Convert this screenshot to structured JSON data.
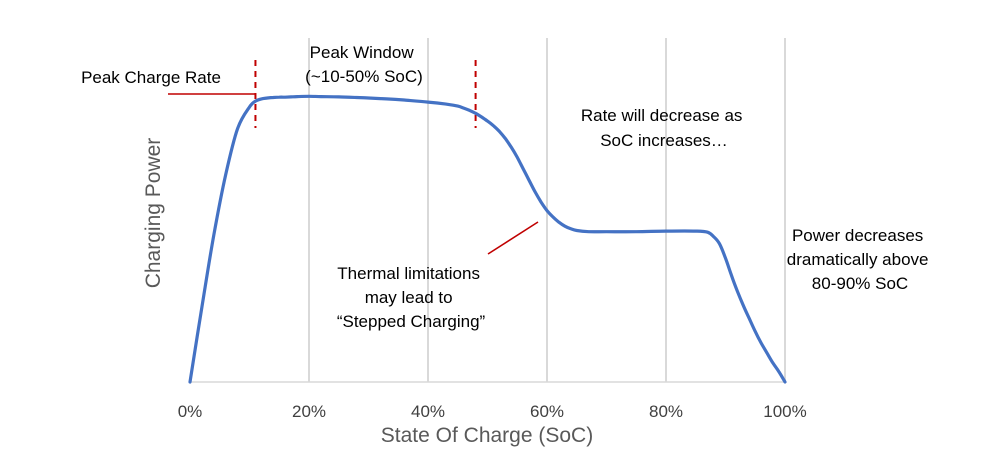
{
  "chart_data": {
    "type": "line",
    "title": "",
    "xlabel": "State Of Charge (SoC)",
    "ylabel": "Charging Power",
    "xlim": [
      0,
      100
    ],
    "x_ticks": [
      "0%",
      "20%",
      "40%",
      "60%",
      "80%",
      "100%"
    ],
    "x_tick_values": [
      0,
      20,
      40,
      60,
      80,
      100
    ],
    "y_ticks_shown": false,
    "grid": "vertical",
    "series": [
      {
        "color": "#4472c4",
        "x": [
          0,
          2,
          4,
          6,
          8,
          10,
          11,
          12,
          13,
          14,
          15,
          16,
          17,
          18,
          20,
          22,
          25,
          28,
          30,
          33,
          36,
          40,
          43,
          45,
          46,
          47,
          48,
          49,
          50,
          51,
          52,
          53,
          54,
          55,
          56,
          57,
          58,
          59,
          60,
          61,
          62,
          63,
          64,
          65,
          67,
          70,
          75,
          80,
          85,
          87,
          88,
          89,
          90,
          91,
          92,
          93,
          94,
          95,
          96,
          97,
          98,
          99,
          100
        ],
        "y": [
          0,
          26,
          51,
          72,
          88,
          95.5,
          97.5,
          98.3,
          98.6,
          98.8,
          98.9,
          98.9,
          99.0,
          99.1,
          99.2,
          99.1,
          99.0,
          98.8,
          98.6,
          98.3,
          97.9,
          97.2,
          96.5,
          95.8,
          95.1,
          94.3,
          93.3,
          92.0,
          90.6,
          89.0,
          87.0,
          84.5,
          81.5,
          78.0,
          74.0,
          70.0,
          66.0,
          62.5,
          59.5,
          57.3,
          55.5,
          54.1,
          53.2,
          52.6,
          52.2,
          52.2,
          52.2,
          52.4,
          52.4,
          52.0,
          50.5,
          48.0,
          43.0,
          37.0,
          31.5,
          26.5,
          22.0,
          17.5,
          13.5,
          10.0,
          6.5,
          3.5,
          0
        ]
      }
    ],
    "markers": [
      {
        "x": 11,
        "color": "#c00000",
        "style": "dashed"
      },
      {
        "x": 48,
        "color": "#c00000",
        "style": "dashed"
      }
    ],
    "annotations": [
      {
        "lines": [
          "Peak Charge Rate"
        ]
      },
      {
        "lines": [
          "Peak Window",
          "(~10-50% SoC)"
        ]
      },
      {
        "lines": [
          "Rate will decrease as",
          "SoC increases…"
        ]
      },
      {
        "lines": [
          "Thermal limitations",
          "may lead to",
          "“Stepped Charging”"
        ]
      },
      {
        "lines": [
          "Power decreases",
          "dramatically above",
          "80-90% SoC"
        ]
      }
    ]
  }
}
